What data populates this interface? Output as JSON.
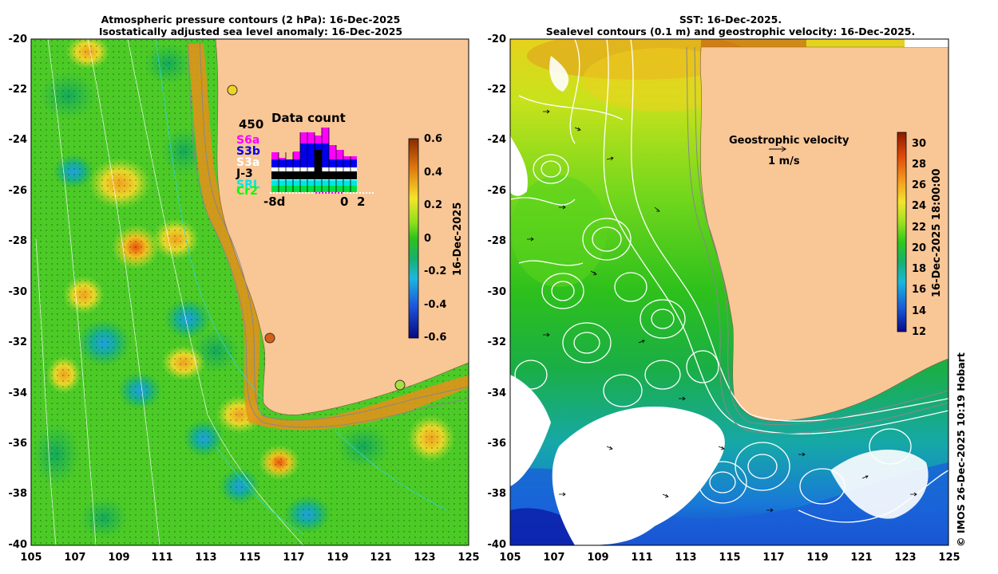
{
  "left_panel": {
    "title_line1": "Atmospheric pressure contours (2 hPa): 16-Dec-2025",
    "title_line2": "Isostatically adjusted sea level anomaly: 16-Dec-2025",
    "colorbar": {
      "ticks": [
        "0.6",
        "0.4",
        "0.2",
        "0",
        "-0.2",
        "-0.4",
        "-0.6"
      ],
      "label": "16-Dec-2025"
    },
    "data_count": {
      "title": "Data count",
      "max_label": "450",
      "axis_start": "-8d",
      "axis_zero": "0",
      "axis_end": "2",
      "satellites": [
        {
          "name": "S6a",
          "color": "#ff00ff"
        },
        {
          "name": "S3b",
          "color": "#0000ee"
        },
        {
          "name": "S3a",
          "color": "#ffffff"
        },
        {
          "name": "J-3",
          "color": "#000000"
        },
        {
          "name": "SRL",
          "color": "#00e5e5"
        },
        {
          "name": "Cr2",
          "color": "#00ff00"
        }
      ]
    }
  },
  "right_panel": {
    "title_line1": "SST: 16-Dec-2025.",
    "title_line2": "Sealevel contours (0.1 m) and geostrophic velocity: 16-Dec-2025.",
    "velocity_legend": "Geostrophic velocity",
    "velocity_scale": "1 m/s",
    "colorbar": {
      "ticks": [
        "30",
        "28",
        "26",
        "24",
        "22",
        "20",
        "18",
        "16",
        "14",
        "12"
      ],
      "label": "16-Dec-2025 18:00:00"
    }
  },
  "axes": {
    "lat_ticks": [
      "-20",
      "-22",
      "-24",
      "-26",
      "-28",
      "-30",
      "-32",
      "-34",
      "-36",
      "-38",
      "-40"
    ],
    "lon_ticks": [
      "105",
      "107",
      "109",
      "111",
      "113",
      "115",
      "117",
      "119",
      "121",
      "123",
      "125"
    ]
  },
  "credit": "© IMOS 26-Dec-2025 10:19 Hobart"
}
